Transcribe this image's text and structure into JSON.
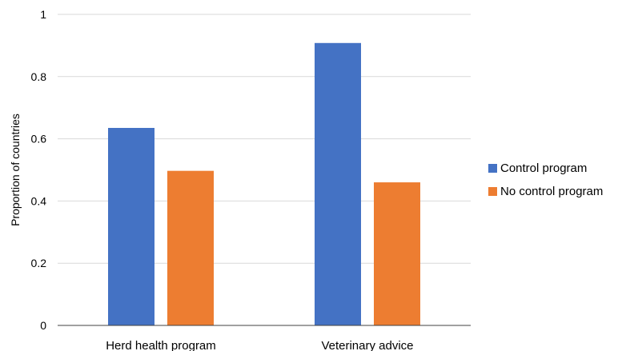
{
  "chart_data": {
    "type": "bar",
    "categories": [
      "Herd health program",
      "Veterinary advice"
    ],
    "series": [
      {
        "name": "Control program",
        "values": [
          0.635,
          0.908
        ],
        "color": "#4472C4"
      },
      {
        "name": "No control program",
        "values": [
          0.497,
          0.46
        ],
        "color": "#ED7D31"
      }
    ],
    "title": "",
    "xlabel": "",
    "ylabel": "Proportion of countries",
    "ylim": [
      0,
      1
    ],
    "yticks": [
      "0",
      "0.2",
      "0.4",
      "0.6",
      "0.8",
      "1"
    ],
    "grid": true,
    "legend_position": "right"
  }
}
